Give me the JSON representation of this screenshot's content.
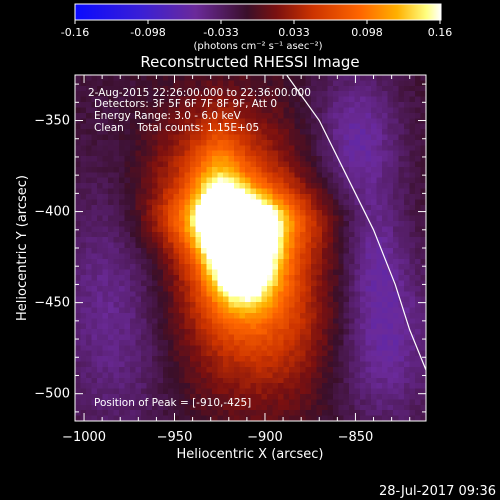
{
  "colors": {
    "background": "#000000",
    "foreground": "#ffffff",
    "colormap": [
      "#0a0aff",
      "#3a1fd6",
      "#5a1fa6",
      "#6b2a9a",
      "#4a1a2a",
      "#cc3300",
      "#ff6600",
      "#ffb000",
      "#ffff80",
      "#ffffff"
    ]
  },
  "colorbar": {
    "tick_labels": [
      "-0.16",
      "-0.098",
      "-0.033",
      "0.033",
      "0.098",
      "0.16"
    ],
    "units": "(photons cm⁻² s⁻¹ asec⁻²)"
  },
  "title": "Reconstructed RHESSI Image",
  "info": {
    "time_range": "2-Aug-2015 22:26:00.000 to 22:36:00.000",
    "detectors": "Detectors: 3F 5F 6F 7F 8F 9F, Att 0",
    "energy": "Energy Range: 3.0 - 6.0 keV",
    "clean": "Clean    Total counts: 1.15E+05",
    "peak": "Position of Peak = [-910,-425]"
  },
  "footer": {
    "date": "28-Jul-2017 09:36"
  },
  "chart_data": {
    "type": "heatmap",
    "title": "Reconstructed RHESSI Image",
    "xlabel": "Heliocentric X (arcsec)",
    "ylabel": "Heliocentric Y (arcsec)",
    "xlim": [
      -1005,
      -811
    ],
    "ylim": [
      -515,
      -325
    ],
    "xticks": [
      -1000,
      -950,
      -900,
      -850
    ],
    "yticks": [
      -350,
      -400,
      -450,
      -500
    ],
    "zlim": [
      -0.16,
      0.16
    ],
    "peak_position": [
      -910,
      -425
    ],
    "limb_curve": [
      [
        -888,
        -325
      ],
      [
        -870,
        -350
      ],
      [
        -855,
        -380
      ],
      [
        -840,
        -410
      ],
      [
        -828,
        -440
      ],
      [
        -820,
        -465
      ],
      [
        -811,
        -487
      ]
    ],
    "sources": [
      {
        "x": -910,
        "y": -425,
        "sx": 14,
        "sy": 20,
        "amp": 0.16
      },
      {
        "x": -915,
        "y": -405,
        "sx": 28,
        "sy": 12,
        "amp": 0.09
      },
      {
        "x": -925,
        "y": -395,
        "sx": 10,
        "sy": 30,
        "amp": 0.07
      },
      {
        "x": -920,
        "y": -425,
        "sx": 38,
        "sy": 45,
        "amp": 0.06
      },
      {
        "x": -930,
        "y": -380,
        "sx": 30,
        "sy": 25,
        "amp": 0.04
      },
      {
        "x": -895,
        "y": -465,
        "sx": 28,
        "sy": 30,
        "amp": 0.04
      }
    ],
    "negative_regions": [
      {
        "x": -850,
        "y": -360,
        "sx": 18,
        "sy": 28,
        "amp": -0.05
      },
      {
        "x": -835,
        "y": -470,
        "sx": 22,
        "sy": 35,
        "amp": -0.05
      },
      {
        "x": -980,
        "y": -445,
        "sx": 25,
        "sy": 55,
        "amp": -0.05
      },
      {
        "x": -840,
        "y": -420,
        "sx": 12,
        "sy": 25,
        "amp": -0.03
      }
    ]
  }
}
